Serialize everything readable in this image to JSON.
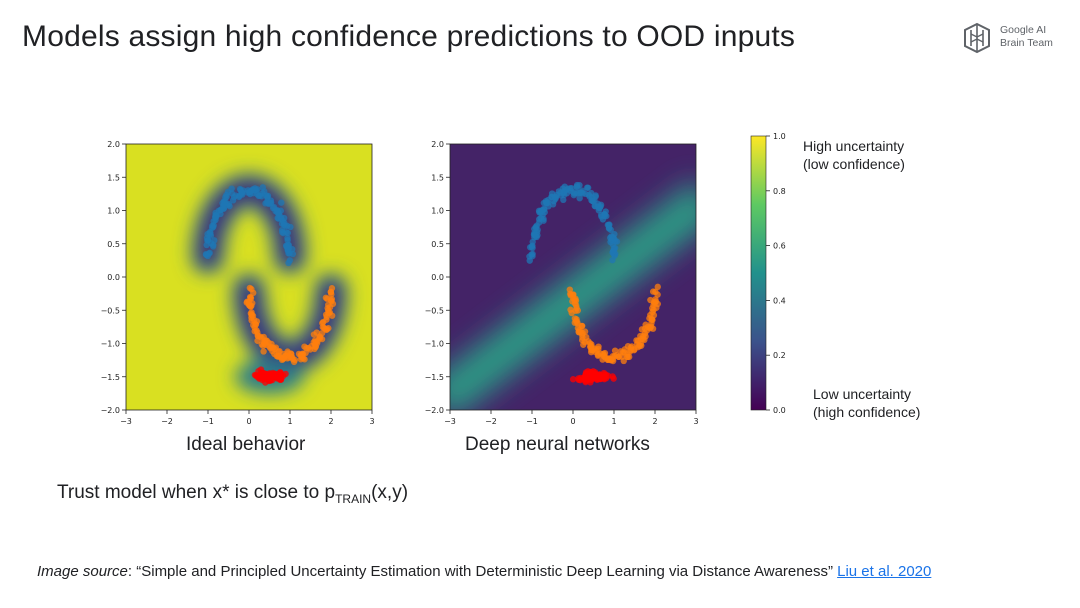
{
  "title": "Models assign high confidence predictions to OOD inputs",
  "logo": {
    "line1": "Google AI",
    "line2": "Brain Team",
    "icon": "google-ai-brain-icon"
  },
  "captions": {
    "left": "Ideal behavior",
    "right": "Deep neural networks"
  },
  "trust": {
    "prefix": "Trust model when x*  is close to p",
    "sub": "TRAIN",
    "suffix": "(x,y)"
  },
  "colorbar": {
    "high_line1": "High uncertainty",
    "high_line2": "(low confidence)",
    "low_line1": "Low uncertainty",
    "low_line2": "(high confidence)",
    "ticks": [
      0.0,
      0.2,
      0.4,
      0.6,
      0.8,
      1.0
    ],
    "tick_labels": [
      "0.0",
      "0.2",
      "0.4",
      "0.6",
      "0.8",
      "1.0"
    ],
    "colors": [
      "#440154",
      "#3b528b",
      "#21918c",
      "#5ec962",
      "#fde725"
    ]
  },
  "source": {
    "label": "Image source",
    "colon": ": ",
    "text": "“Simple and Principled Uncertainty Estimation with Deterministic Deep Learning via Distance Awareness” ",
    "link": "Liu et al. 2020"
  },
  "chart_data": [
    {
      "type": "scatter",
      "title": "Ideal behavior",
      "xlim": [
        -3,
        3
      ],
      "ylim": [
        -2,
        2
      ],
      "xticks": [
        -3,
        -2,
        -1,
        0,
        1,
        2,
        3
      ],
      "yticks": [
        -2.0,
        -1.5,
        -1.0,
        -0.5,
        0.0,
        0.5,
        1.0,
        1.5,
        2.0
      ],
      "background": "uncertainty high (yellow) everywhere except near training data (low, purple)",
      "series": [
        {
          "name": "class 0 (upper moon)",
          "color": "#1f77b4",
          "shape": "arc",
          "center": [
            0,
            0.3
          ],
          "radius": 1.0,
          "angle_deg": [
            0,
            180
          ]
        },
        {
          "name": "class 1 (lower moon)",
          "color": "#ff7f0e",
          "shape": "arc",
          "center": [
            1,
            -0.2
          ],
          "radius": 1.0,
          "angle_deg": [
            180,
            360
          ]
        },
        {
          "name": "OOD",
          "color": "#ff0000",
          "shape": "cluster",
          "center": [
            0.5,
            -1.5
          ],
          "spread": [
            0.55,
            0.08
          ]
        }
      ]
    },
    {
      "type": "scatter",
      "title": "Deep neural networks",
      "xlim": [
        -3,
        3
      ],
      "ylim": [
        -2,
        2
      ],
      "xticks": [
        -3,
        -2,
        -1,
        0,
        1,
        2,
        3
      ],
      "yticks": [
        -2.0,
        -1.5,
        -1.0,
        -0.5,
        0.0,
        0.5,
        1.0,
        1.5,
        2.0
      ],
      "background": "uncertainty low (purple) almost everywhere except a diagonal band along the decision boundary",
      "series": [
        {
          "name": "class 0 (upper moon)",
          "color": "#1f77b4",
          "shape": "arc",
          "center": [
            0,
            0.3
          ],
          "radius": 1.0,
          "angle_deg": [
            0,
            180
          ]
        },
        {
          "name": "class 1 (lower moon)",
          "color": "#ff7f0e",
          "shape": "arc",
          "center": [
            1,
            -0.2
          ],
          "radius": 1.0,
          "angle_deg": [
            180,
            360
          ]
        },
        {
          "name": "OOD",
          "color": "#ff0000",
          "shape": "cluster",
          "center": [
            0.5,
            -1.5
          ],
          "spread": [
            0.55,
            0.08
          ]
        }
      ]
    }
  ]
}
